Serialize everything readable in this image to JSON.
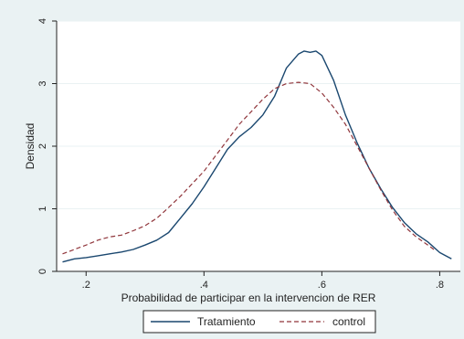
{
  "chart_data": {
    "type": "line",
    "title": "",
    "xlabel": "Probabilidad de participar en la intervencion de RER",
    "ylabel": "Densidad",
    "xlim": [
      0.15,
      0.835
    ],
    "ylim": [
      0,
      4
    ],
    "x_ticks": [
      0.2,
      0.4,
      0.6,
      0.8
    ],
    "x_tick_labels": [
      ".2",
      ".4",
      ".6",
      ".8"
    ],
    "y_ticks": [
      0,
      1,
      2,
      3,
      4
    ],
    "y_tick_labels": [
      "0",
      "1",
      "2",
      "3",
      "4"
    ],
    "grid": true,
    "legend_position": "bottom",
    "colors": {
      "background": "#eaf2f3",
      "plot_area": "#ffffff",
      "grid": "#eaf2f3",
      "tratamiento": "#1a476f",
      "control": "#90353b"
    },
    "series": [
      {
        "name": "Tratamiento",
        "style": "solid",
        "x": [
          0.16,
          0.18,
          0.2,
          0.22,
          0.24,
          0.26,
          0.28,
          0.3,
          0.32,
          0.34,
          0.36,
          0.38,
          0.4,
          0.42,
          0.44,
          0.46,
          0.48,
          0.5,
          0.52,
          0.54,
          0.56,
          0.57,
          0.58,
          0.59,
          0.6,
          0.62,
          0.64,
          0.66,
          0.68,
          0.7,
          0.72,
          0.74,
          0.76,
          0.78,
          0.8,
          0.82
        ],
        "y": [
          0.15,
          0.2,
          0.22,
          0.25,
          0.28,
          0.31,
          0.35,
          0.42,
          0.5,
          0.62,
          0.85,
          1.08,
          1.35,
          1.65,
          1.95,
          2.15,
          2.3,
          2.5,
          2.8,
          3.25,
          3.47,
          3.52,
          3.5,
          3.52,
          3.45,
          3.05,
          2.5,
          2.05,
          1.65,
          1.32,
          1.02,
          0.78,
          0.6,
          0.47,
          0.3,
          0.2
        ]
      },
      {
        "name": "control",
        "style": "dashed",
        "x": [
          0.16,
          0.18,
          0.2,
          0.22,
          0.24,
          0.26,
          0.28,
          0.3,
          0.32,
          0.34,
          0.36,
          0.38,
          0.4,
          0.42,
          0.44,
          0.46,
          0.48,
          0.5,
          0.52,
          0.54,
          0.56,
          0.58,
          0.6,
          0.62,
          0.64,
          0.66,
          0.68,
          0.7,
          0.72,
          0.74,
          0.76,
          0.78,
          0.79
        ],
        "y": [
          0.28,
          0.35,
          0.42,
          0.5,
          0.55,
          0.58,
          0.65,
          0.73,
          0.85,
          1.02,
          1.2,
          1.4,
          1.6,
          1.85,
          2.1,
          2.35,
          2.55,
          2.75,
          2.92,
          3.0,
          3.02,
          3.0,
          2.85,
          2.62,
          2.35,
          2.0,
          1.65,
          1.3,
          0.98,
          0.72,
          0.55,
          0.42,
          0.35
        ]
      }
    ]
  }
}
